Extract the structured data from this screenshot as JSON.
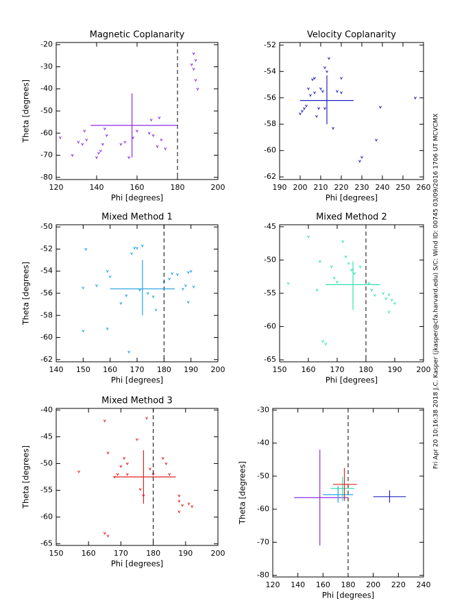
{
  "chart_data": [
    {
      "type": "scatter",
      "title": "Magnetic Coplanarity",
      "x_label": "Phi [degrees]",
      "y_label": "Theta [degrees]",
      "color": "#8a2be2",
      "x": [
        122,
        128,
        131,
        133,
        134,
        135,
        140,
        141,
        142,
        143,
        144,
        145,
        152,
        154,
        156,
        158,
        160,
        166,
        167,
        168,
        170,
        171,
        172,
        174,
        187,
        188,
        189,
        190,
        188,
        189
      ],
      "values": [
        -62,
        -70,
        -64,
        -65,
        -59,
        -63,
        -71,
        -69,
        -68,
        -65,
        -58,
        -61,
        -65,
        -64,
        -71,
        -62,
        -59,
        -60,
        -54,
        -61,
        -66,
        -53,
        -63,
        -67,
        -29,
        -24,
        -36,
        -40,
        -31,
        -27
      ],
      "cross": {
        "x": 157.5,
        "y": -56.5,
        "xlow": 137,
        "xhigh": 180,
        "ylow": -71,
        "yhigh": -42
      },
      "reference_x": 180,
      "xlim": [
        120,
        200
      ],
      "xticks": [
        120,
        140,
        160,
        180,
        200
      ],
      "ylim": [
        -81,
        -19
      ],
      "yticks": [
        -80,
        -70,
        -60,
        -50,
        -40,
        -30,
        -20
      ]
    },
    {
      "type": "scatter",
      "title": "Velocity Coplanarity",
      "x_label": "Phi [degrees]",
      "color": "#2020c0",
      "x": [
        200,
        201,
        202,
        203,
        204,
        205,
        206,
        207,
        207,
        208,
        209,
        210,
        211,
        212,
        213,
        214,
        212,
        216,
        218,
        220,
        220,
        229,
        230,
        237,
        239,
        256
      ],
      "values": [
        -57.2,
        -57,
        -56.8,
        -56.6,
        -55.3,
        -55.8,
        -54.6,
        -54.5,
        -55.6,
        -57.4,
        -56.8,
        -55.3,
        -55.5,
        -53.7,
        -54,
        -53,
        -56.8,
        -58.3,
        -55.5,
        -54.5,
        -55.6,
        -60.8,
        -60.5,
        -59.2,
        -56.7,
        -56
      ],
      "cross": {
        "x": 213,
        "y": -56.2,
        "xlow": 200,
        "xhigh": 226,
        "ylow": -58,
        "yhigh": -54.3
      },
      "xlim": [
        190,
        260
      ],
      "xticks": [
        190,
        200,
        210,
        220,
        230,
        240,
        250,
        260
      ],
      "ylim": [
        -62.2,
        -51.8
      ],
      "yticks": [
        -62,
        -60,
        -58,
        -56,
        -54,
        -52
      ]
    },
    {
      "type": "scatter",
      "title": "Mixed Method 1",
      "x_label": "Phi [degrees]",
      "y_label": "Theta [degrees]",
      "color": "#20a0e0",
      "x": [
        150,
        151,
        150,
        155,
        159,
        159,
        160,
        164,
        166,
        167,
        168,
        169,
        170,
        172,
        171,
        174,
        176,
        177,
        180,
        182,
        183,
        185,
        188,
        189,
        190,
        191,
        189,
        187
      ],
      "values": [
        -55.5,
        -52,
        -59.4,
        -55.3,
        -54,
        -59.2,
        -54.5,
        -56.9,
        -56.2,
        -61.3,
        -52.4,
        -51.9,
        -51.9,
        -51.7,
        -55.7,
        -56,
        -56.3,
        -57.5,
        -55,
        -54.7,
        -54.2,
        -54.3,
        -55.3,
        -54.1,
        -54,
        -55.4,
        -56.8,
        -55.6
      ],
      "cross": {
        "x": 172,
        "y": -55.6,
        "xlow": 160,
        "xhigh": 184,
        "ylow": -58,
        "yhigh": -53
      },
      "reference_x": 180,
      "xlim": [
        140,
        200
      ],
      "xticks": [
        140,
        150,
        160,
        170,
        180,
        190,
        200
      ],
      "ylim": [
        -62.2,
        -49.8
      ],
      "yticks": [
        -62,
        -60,
        -58,
        -56,
        -54,
        -52,
        -50
      ]
    },
    {
      "type": "scatter",
      "title": "Mixed Method 2",
      "x_label": "Phi [degrees]",
      "color": "#30e0b0",
      "x": [
        153,
        160,
        163,
        164,
        165,
        166,
        168,
        169,
        170,
        172,
        173,
        174,
        175,
        176,
        178,
        181,
        182,
        183,
        186,
        187,
        188,
        189,
        190,
        188
      ],
      "values": [
        -53.5,
        -46.5,
        -54.5,
        -50.2,
        -62.2,
        -62.6,
        -51,
        -52.7,
        -53.3,
        -47.2,
        -49.5,
        -50.5,
        -51.5,
        -52,
        -51,
        -53.5,
        -54.5,
        -55.3,
        -55,
        -55.8,
        -57.8,
        -56,
        -56.5,
        -55.2
      ],
      "cross": {
        "x": 175.5,
        "y": -53.7,
        "xlow": 166,
        "xhigh": 185,
        "ylow": -57.5,
        "yhigh": -50.2
      },
      "reference_x": 180,
      "xlim": [
        150,
        200
      ],
      "xticks": [
        150,
        160,
        170,
        180,
        190,
        200
      ],
      "ylim": [
        -65.3,
        -44.7
      ],
      "yticks": [
        -65,
        -60,
        -55,
        -50,
        -45
      ]
    },
    {
      "type": "scatter",
      "title": "Mixed Method 3",
      "x_label": "Phi [degrees]",
      "y_label": "Theta [degrees]",
      "color": "#e02020",
      "x": [
        157,
        165,
        165,
        166,
        166,
        168,
        169,
        170,
        171,
        172,
        172,
        175,
        176,
        177,
        178,
        179,
        180,
        183,
        184,
        185,
        188,
        188,
        188,
        189,
        191,
        192
      ],
      "values": [
        -51.5,
        -42,
        -63,
        -63.5,
        -48,
        -52.5,
        -52,
        -50.5,
        -49,
        -50,
        -52,
        -45.5,
        -54.8,
        -56,
        -41.5,
        -51,
        -52,
        -49,
        -50,
        -52,
        -56,
        -57,
        -59,
        -57.8,
        -57.5,
        -58
      ],
      "cross": {
        "x": 177,
        "y": -52.5,
        "xlow": 168,
        "xhigh": 187,
        "ylow": -57.5,
        "yhigh": -47.5
      },
      "reference_x": 180,
      "xlim": [
        150,
        200
      ],
      "xticks": [
        150,
        160,
        170,
        180,
        190,
        200
      ],
      "ylim": [
        -65.3,
        -39.7
      ],
      "yticks": [
        -65,
        -60,
        -55,
        -50,
        -45,
        -40
      ]
    },
    {
      "type": "crosses",
      "x_label": "Phi [degrees]",
      "y_label": "Theta [degrees]",
      "crosses": [
        {
          "color": "#8a2be2",
          "x": 157.5,
          "y": -56.5,
          "xlow": 137,
          "xhigh": 180,
          "ylow": -71,
          "yhigh": -42
        },
        {
          "color": "#2020c0",
          "x": 213,
          "y": -56.2,
          "xlow": 200,
          "xhigh": 226,
          "ylow": -58,
          "yhigh": -54.3
        },
        {
          "color": "#20a0e0",
          "x": 172,
          "y": -55.6,
          "xlow": 160,
          "xhigh": 184,
          "ylow": -58,
          "yhigh": -53
        },
        {
          "color": "#30e0b0",
          "x": 175.5,
          "y": -53.7,
          "xlow": 166,
          "xhigh": 185,
          "ylow": -57.5,
          "yhigh": -50.2
        },
        {
          "color": "#e02020",
          "x": 177,
          "y": -52.5,
          "xlow": 168,
          "xhigh": 187,
          "ylow": -57.5,
          "yhigh": -47.5
        }
      ],
      "reference_x": 180,
      "xlim": [
        120,
        240
      ],
      "xticks": [
        120,
        140,
        160,
        180,
        200,
        220,
        240
      ],
      "ylim": [
        -80.5,
        -29.5
      ],
      "yticks": [
        -80,
        -70,
        -60,
        -50,
        -40,
        -30
      ]
    }
  ],
  "annotation": "Fri Apr 20 10:16:38 2018   J.C. Kasper (jkasper@cfa.harvard.edu)   S/C: Wind ID: 00745 03/09/2016  1706 UT MCVCMX"
}
